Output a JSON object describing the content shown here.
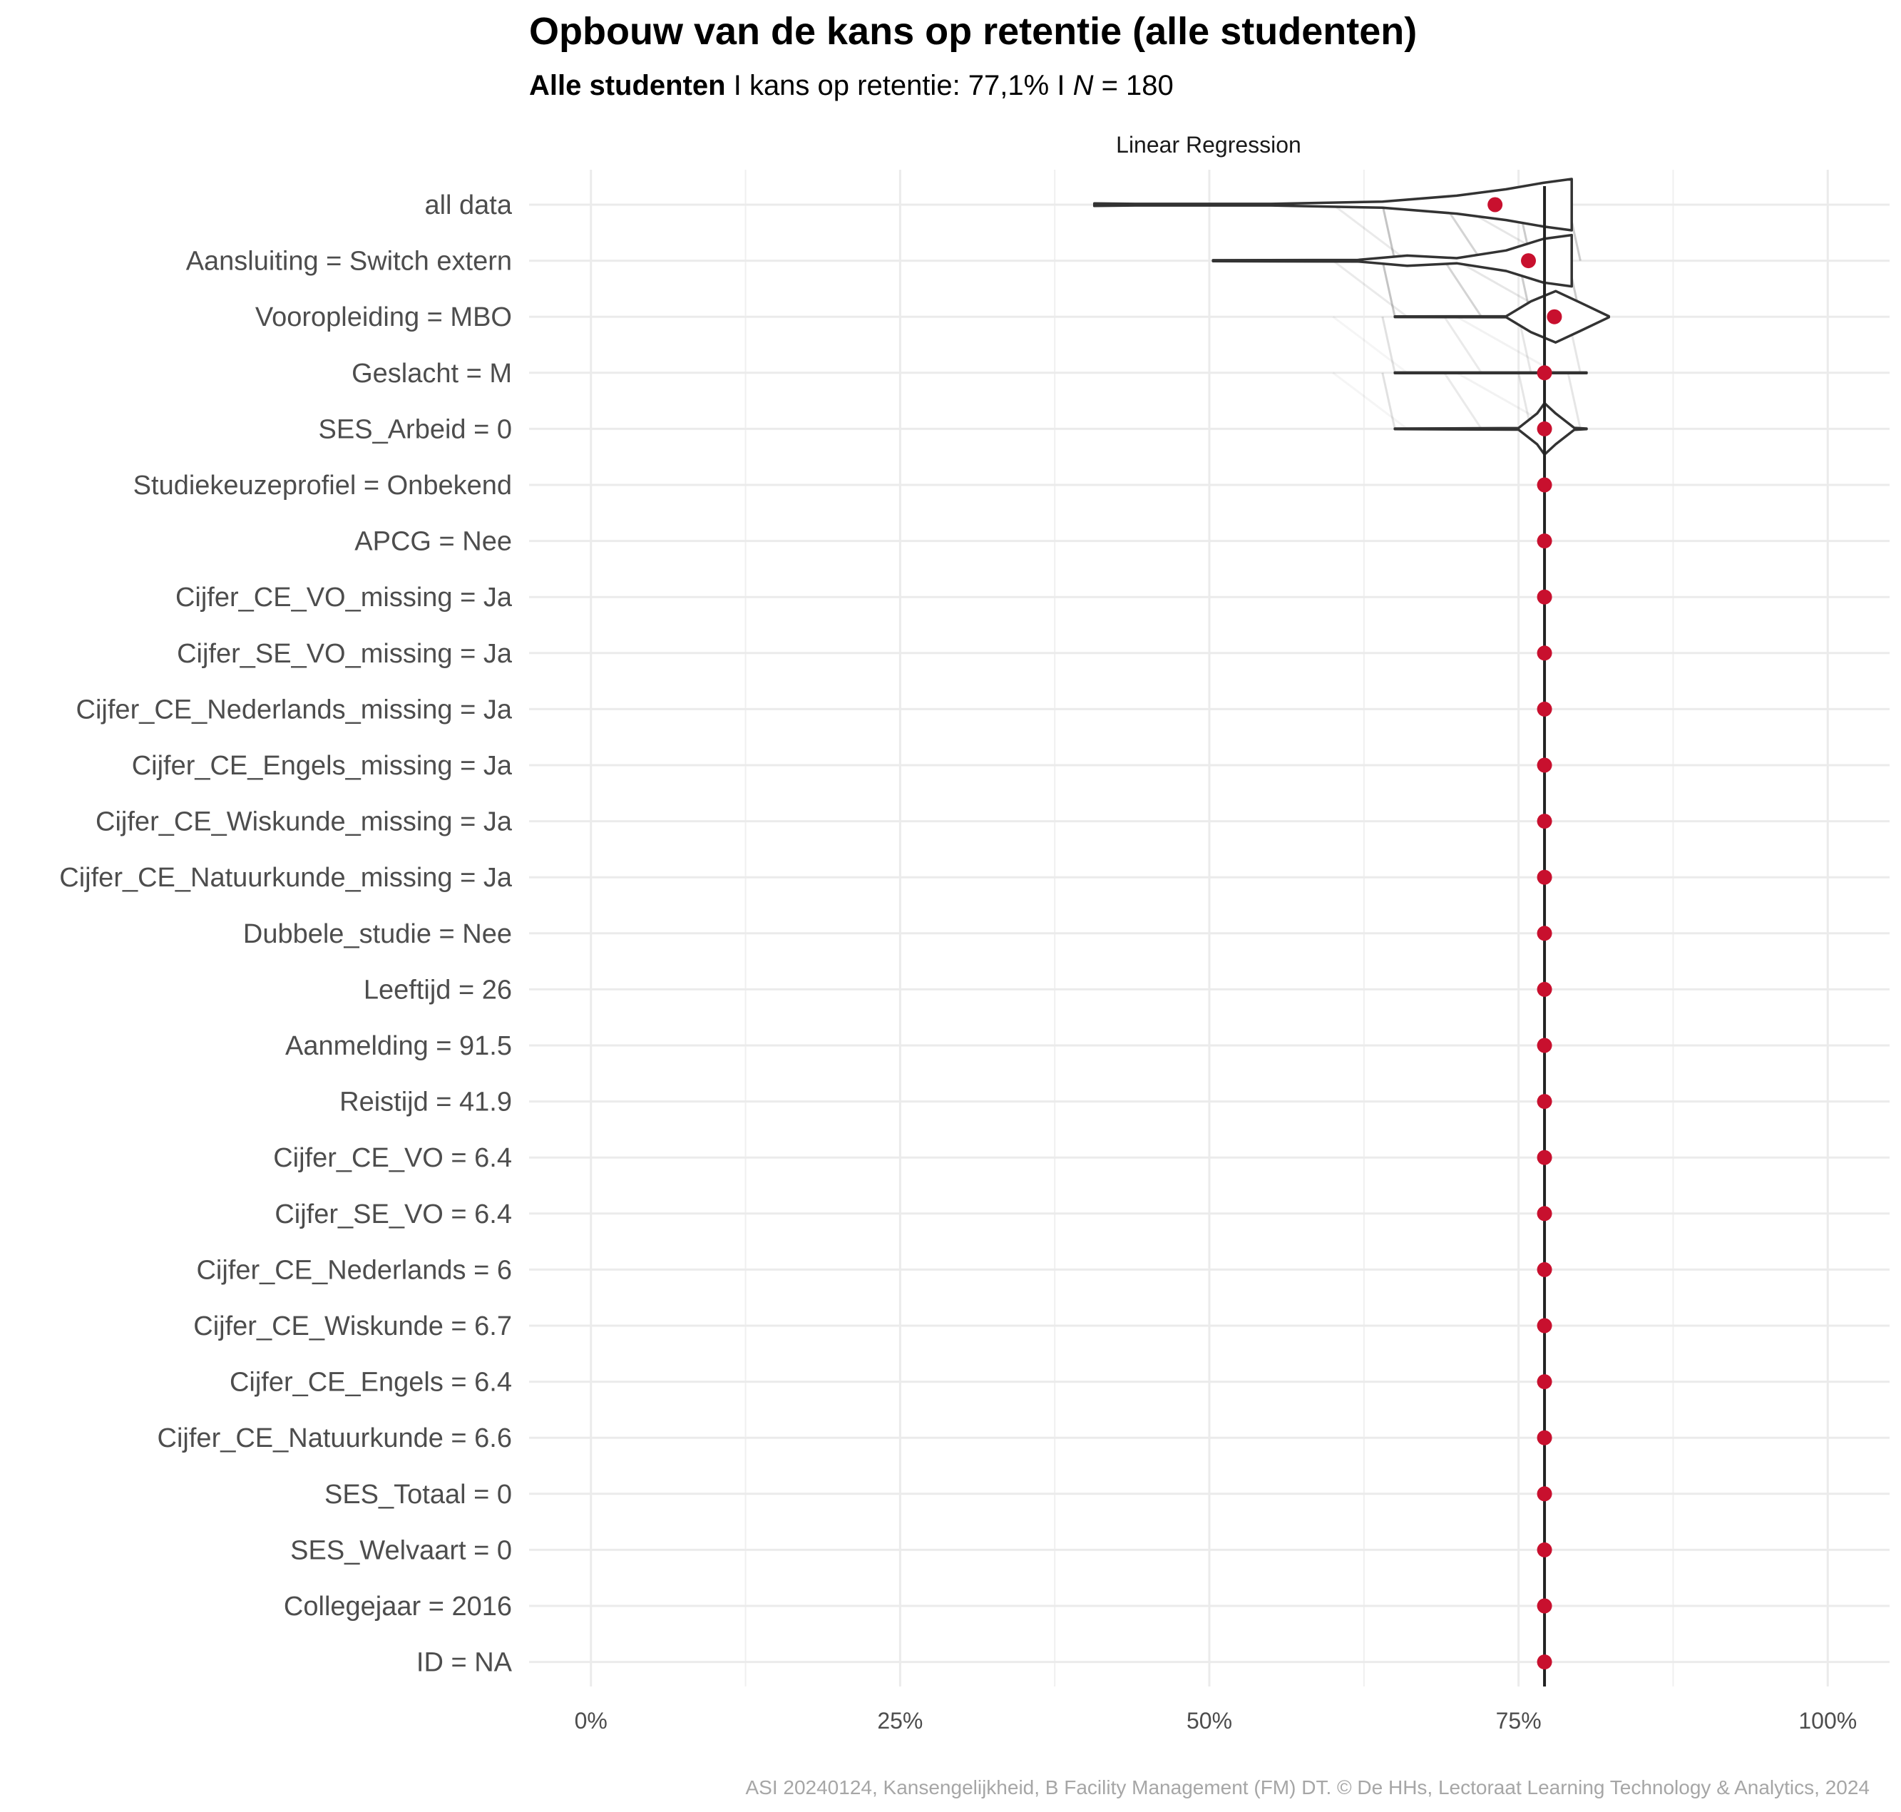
{
  "chart_data": {
    "type": "violin",
    "title": "Opbouw van de kans op retentie (alle studenten)",
    "subtitle": {
      "group": "Alle studenten",
      "separator": " I ",
      "prob_text": "kans op retentie: 77,1%",
      "n_italic": "N",
      "n_value": " = 180"
    },
    "facet_label": "Linear Regression",
    "caption": "ASI 20240124, Kansengelijkheid, B Facility Management (FM) DT. © De HHs, Lectoraat Learning Technology & Analytics, 2024",
    "x_ticks": [
      {
        "value": 0,
        "label": "0%"
      },
      {
        "value": 0.25,
        "label": "25%"
      },
      {
        "value": 0.5,
        "label": "50%"
      },
      {
        "value": 0.75,
        "label": "75%"
      },
      {
        "value": 1,
        "label": "100%"
      }
    ],
    "xlim": [
      -0.05,
      1.05
    ],
    "baseline": 0.771,
    "grid": true,
    "point_color": "#C8102E",
    "violin_color": "#333333",
    "categories": [
      "all data",
      "Aansluiting = Switch extern",
      "Vooropleiding = MBO",
      "Geslacht = M",
      "SES_Arbeid = 0",
      "Studiekeuzeprofiel = Onbekend",
      "APCG = Nee",
      "Cijfer_CE_VO_missing = Ja",
      "Cijfer_SE_VO_missing = Ja",
      "Cijfer_CE_Nederlands_missing = Ja",
      "Cijfer_CE_Engels_missing = Ja",
      "Cijfer_CE_Wiskunde_missing = Ja",
      "Cijfer_CE_Natuurkunde_missing = Ja",
      "Dubbele_studie = Nee",
      "Leeftijd = 26",
      "Aanmelding = 91.5",
      "Reistijd = 41.9",
      "Cijfer_CE_VO = 6.4",
      "Cijfer_SE_VO = 6.4",
      "Cijfer_CE_Nederlands = 6",
      "Cijfer_CE_Wiskunde = 6.7",
      "Cijfer_CE_Engels = 6.4",
      "Cijfer_CE_Natuurkunde = 6.6",
      "SES_Totaal = 0",
      "SES_Welvaart = 0",
      "Collegejaar = 2016",
      "ID = NA"
    ],
    "mean_values": [
      0.731,
      0.758,
      0.779,
      0.771,
      0.771,
      0.771,
      0.771,
      0.771,
      0.771,
      0.771,
      0.771,
      0.771,
      0.771,
      0.771,
      0.771,
      0.771,
      0.771,
      0.771,
      0.771,
      0.771,
      0.771,
      0.771,
      0.771,
      0.771,
      0.771,
      0.771,
      0.771
    ],
    "violins": [
      {
        "row": 0,
        "min": 0.407,
        "max": 0.793,
        "profile": [
          [
            0.407,
            0.05
          ],
          [
            0.44,
            0.03
          ],
          [
            0.55,
            0.03
          ],
          [
            0.64,
            0.12
          ],
          [
            0.7,
            0.35
          ],
          [
            0.74,
            0.6
          ],
          [
            0.77,
            0.85
          ],
          [
            0.793,
            1.0
          ]
        ]
      },
      {
        "row": 1,
        "min": 0.503,
        "max": 0.793,
        "profile": [
          [
            0.503,
            0.02
          ],
          [
            0.62,
            0.03
          ],
          [
            0.66,
            0.2
          ],
          [
            0.7,
            0.1
          ],
          [
            0.74,
            0.4
          ],
          [
            0.77,
            0.85
          ],
          [
            0.793,
            1.0
          ]
        ]
      },
      {
        "row": 2,
        "min": 0.65,
        "max": 0.823,
        "profile": [
          [
            0.65,
            0.01
          ],
          [
            0.74,
            0.02
          ],
          [
            0.76,
            0.6
          ],
          [
            0.78,
            1.0
          ],
          [
            0.8,
            0.55
          ],
          [
            0.823,
            0.02
          ]
        ]
      },
      {
        "row": 3,
        "min": 0.65,
        "max": 0.805,
        "profile": [
          [
            0.65,
            0.01
          ],
          [
            0.805,
            0.01
          ]
        ]
      },
      {
        "row": 4,
        "min": 0.65,
        "max": 0.805,
        "profile": [
          [
            0.65,
            0.01
          ],
          [
            0.75,
            0.03
          ],
          [
            0.765,
            0.6
          ],
          [
            0.771,
            1.0
          ],
          [
            0.78,
            0.6
          ],
          [
            0.795,
            0.04
          ],
          [
            0.805,
            0.01
          ]
        ]
      }
    ]
  }
}
